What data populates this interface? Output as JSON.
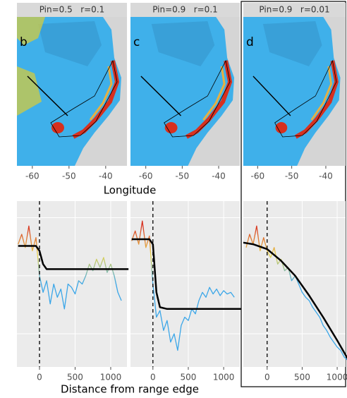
{
  "map_xlabel": "Longitude",
  "profile_xlabel": "Distance from range edge",
  "chart_data": [
    {
      "type": "map",
      "title": "Pin=0.5   r=0.1",
      "panel_label": "b",
      "xlim": [
        -64.2,
        -34.2
      ],
      "xticks": [
        -60,
        -50,
        -40
      ]
    },
    {
      "type": "map",
      "title": "Pin=0.9   r=0.1",
      "panel_label": "c",
      "xlim": [
        -64.2,
        -34.2
      ],
      "xticks": [
        -60,
        -50,
        -40
      ]
    },
    {
      "type": "map",
      "title": "Pin=0.9   r=0.01",
      "panel_label": "d",
      "xlim": [
        -64.2,
        -34.2
      ],
      "xticks": [
        -60,
        -50,
        -40
      ]
    },
    {
      "type": "line",
      "xlim": [
        -317,
        1228
      ],
      "ylim": [
        0,
        1
      ],
      "xticks": [
        0,
        500,
        1000
      ],
      "vline": 0,
      "series": [
        {
          "color": [
            "#d7301f",
            "#e8d44d",
            "#3aa6e8"
          ],
          "x": [
            -300,
            -250,
            -200,
            -150,
            -100,
            -50,
            0,
            50,
            100,
            150,
            200,
            250,
            300,
            350,
            400,
            450,
            500,
            550,
            600,
            650,
            700,
            750,
            800,
            850,
            900,
            950,
            1000,
            1050,
            1100,
            1150
          ],
          "values": [
            0.74,
            0.8,
            0.72,
            0.85,
            0.7,
            0.78,
            0.55,
            0.45,
            0.52,
            0.38,
            0.5,
            0.42,
            0.47,
            0.35,
            0.5,
            0.48,
            0.44,
            0.52,
            0.5,
            0.55,
            0.62,
            0.58,
            0.65,
            0.6,
            0.66,
            0.57,
            0.62,
            0.55,
            0.45,
            0.4
          ]
        },
        {
          "color": "#000000",
          "x": [
            -300,
            -50,
            0,
            50,
            100,
            200,
            1250
          ],
          "values": [
            0.73,
            0.73,
            0.7,
            0.62,
            0.59,
            0.59,
            0.59
          ]
        }
      ]
    },
    {
      "type": "line",
      "xlim": [
        -317,
        1228
      ],
      "ylim": [
        0,
        1
      ],
      "xticks": [
        0,
        500,
        1000
      ],
      "vline": 0,
      "series": [
        {
          "color": [
            "#d7301f",
            "#e8d44d",
            "#3aa6e8"
          ],
          "x": [
            -300,
            -250,
            -200,
            -150,
            -100,
            -50,
            0,
            50,
            100,
            150,
            200,
            250,
            300,
            350,
            400,
            450,
            500,
            550,
            600,
            650,
            700,
            750,
            800,
            850,
            900,
            950,
            1000,
            1050,
            1100,
            1150
          ],
          "values": [
            0.76,
            0.82,
            0.74,
            0.88,
            0.72,
            0.79,
            0.5,
            0.3,
            0.34,
            0.22,
            0.28,
            0.15,
            0.2,
            0.1,
            0.25,
            0.3,
            0.28,
            0.35,
            0.32,
            0.4,
            0.45,
            0.42,
            0.48,
            0.44,
            0.47,
            0.43,
            0.46,
            0.44,
            0.45,
            0.42
          ]
        },
        {
          "color": "#000000",
          "x": [
            -300,
            -50,
            0,
            50,
            100,
            200,
            1250
          ],
          "values": [
            0.77,
            0.77,
            0.74,
            0.45,
            0.36,
            0.35,
            0.35
          ]
        }
      ]
    },
    {
      "type": "line",
      "xlim": [
        -340,
        1120
      ],
      "ylim": [
        0,
        1
      ],
      "xticks": [
        0,
        500,
        1000
      ],
      "vline": 0,
      "series": [
        {
          "color": [
            "#d7301f",
            "#e8d44d",
            "#3aa6e8"
          ],
          "x": [
            -300,
            -250,
            -200,
            -150,
            -100,
            -50,
            0,
            50,
            100,
            150,
            200,
            250,
            300,
            350,
            400,
            450,
            500,
            550,
            600,
            650,
            700,
            750,
            800,
            850,
            900,
            950,
            1000,
            1050,
            1100,
            1150
          ],
          "values": [
            0.72,
            0.8,
            0.74,
            0.85,
            0.7,
            0.78,
            0.7,
            0.66,
            0.72,
            0.62,
            0.65,
            0.58,
            0.6,
            0.52,
            0.55,
            0.5,
            0.45,
            0.42,
            0.4,
            0.36,
            0.33,
            0.3,
            0.25,
            0.22,
            0.18,
            0.15,
            0.12,
            0.1,
            0.06,
            0.04
          ]
        },
        {
          "color": "#000000",
          "x": [
            -340,
            -200,
            0,
            200,
            400,
            600,
            800,
            1000,
            1150
          ],
          "values": [
            0.75,
            0.74,
            0.71,
            0.64,
            0.55,
            0.43,
            0.3,
            0.16,
            0.05
          ]
        }
      ]
    }
  ]
}
